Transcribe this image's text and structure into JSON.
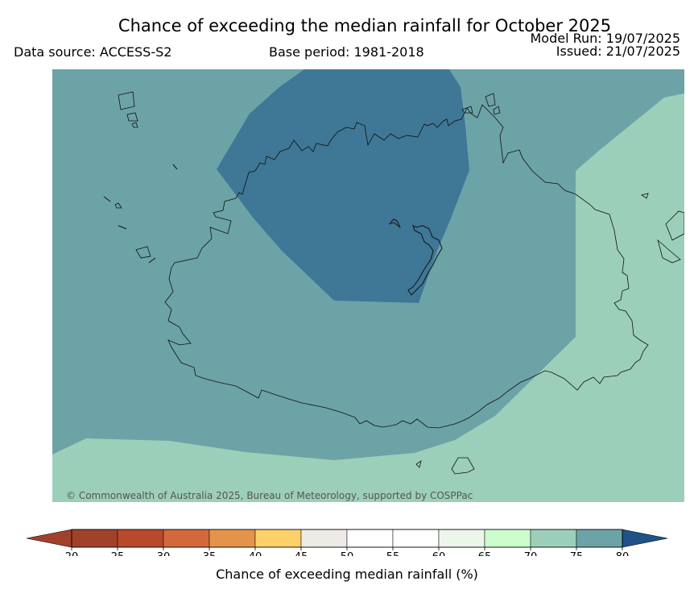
{
  "header": {
    "title": "Chance of exceeding the median rainfall for October 2025",
    "data_source": "Data source: ACCESS-S2",
    "base_period": "Base period: 1981-2018",
    "model_run": "Model Run: 19/07/2025",
    "issued": "Issued: 21/07/2025"
  },
  "map": {
    "copyright": "© Commonwealth of Australia 2025, Bureau of Meteorology, supported by COSPPac",
    "zone_colors": {
      "65-70": "#9ccfb9",
      "70-75": "#6ca3a7",
      "75-80": "#3f7796"
    }
  },
  "colorbar": {
    "label": "Chance of exceeding median rainfall (%)",
    "ticks": [
      "20",
      "25",
      "30",
      "35",
      "40",
      "45",
      "50",
      "55",
      "60",
      "65",
      "70",
      "75",
      "80"
    ],
    "colors": [
      "#a2412b",
      "#b9492b",
      "#d3693b",
      "#e49448",
      "#fdd06a",
      "#eeebe7",
      "#ffffff",
      "#ffffff",
      "#edf6ea",
      "#ccfdcd",
      "#9ccfb9",
      "#6ca3a7",
      "#3f7796"
    ],
    "under_color": "#a2412b",
    "over_color": "#1f5288"
  }
}
